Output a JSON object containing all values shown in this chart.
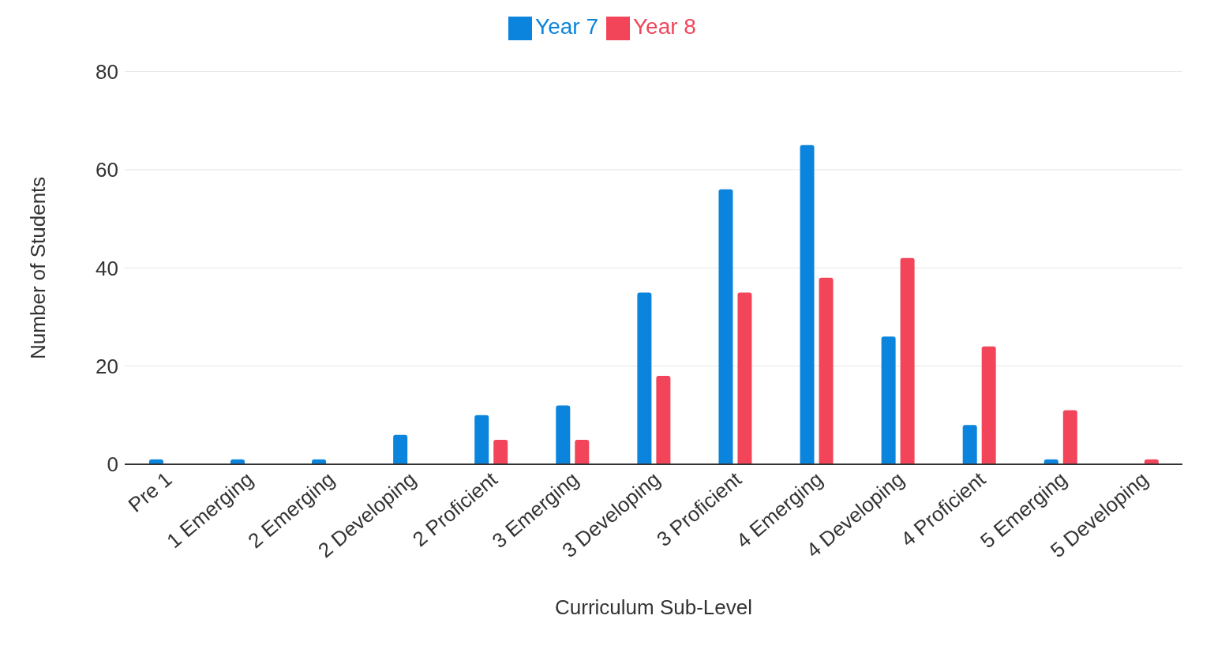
{
  "chart_data": {
    "type": "bar",
    "xlabel": "Curriculum Sub-Level",
    "ylabel": "Number of Students",
    "categories": [
      "Pre 1",
      "1 Emerging",
      "2 Emerging",
      "2 Developing",
      "2 Proficient",
      "3 Emerging",
      "3 Developing",
      "3 Proficient",
      "4 Emerging",
      "4 Developing",
      "4 Proficient",
      "5 Emerging",
      "5 Developing"
    ],
    "series": [
      {
        "name": "Year 7",
        "color": "#0a84dc",
        "values": [
          1,
          1,
          1,
          6,
          10,
          12,
          35,
          56,
          65,
          26,
          8,
          1,
          null
        ]
      },
      {
        "name": "Year 8",
        "color": "#f2455a",
        "values": [
          null,
          null,
          null,
          null,
          5,
          5,
          18,
          35,
          38,
          42,
          24,
          11,
          1
        ]
      }
    ],
    "ylim": [
      0,
      80
    ],
    "yticks": [
      0,
      20,
      40,
      60,
      80
    ],
    "grid": "y",
    "legend": "top"
  }
}
